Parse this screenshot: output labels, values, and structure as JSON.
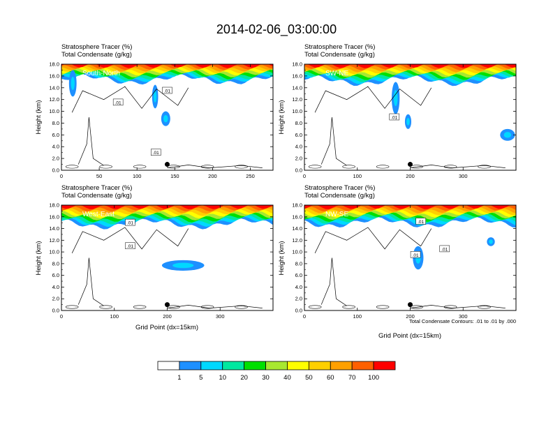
{
  "figure": {
    "title": "2014-02-06_03:00:00",
    "note": "Total Condensate Contours: .01 to .01 by .000"
  },
  "colors": {
    "levels": [
      "#ffffff",
      "#1e90ff",
      "#00d8ff",
      "#00e8a0",
      "#00e000",
      "#a8e830",
      "#ffff00",
      "#ffd000",
      "#ffa000",
      "#ff6000",
      "#ff0000"
    ],
    "stroke": "#000000"
  },
  "chart_data": [
    {
      "type": "filled-contour-cross-section",
      "id": "south-north",
      "panel_label": "South-North",
      "title_left": "Stratosphere Tracer   (%)",
      "title_left2": "Total Condensate   (g/kg)",
      "xlabel": "",
      "ylabel": "Height (km)",
      "xlim": [
        0,
        280
      ],
      "ylim": [
        0,
        18
      ],
      "x_ticks": [
        0,
        50,
        100,
        150,
        200,
        250
      ],
      "y_ticks": [
        0.0,
        2.0,
        4.0,
        6.0,
        8.0,
        10.0,
        12.0,
        14.0,
        16.0,
        18.0
      ],
      "y_tick_labels": [
        "0.0",
        "2.0",
        "4.0",
        "6.0",
        "8.0",
        "10.0",
        "12.0",
        "14.0",
        "16.0",
        "18.0"
      ],
      "marker_point": {
        "x": 140,
        "y": 1.0
      },
      "tracer_base_km": 15.4,
      "blue_patches": [
        {
          "x": 10,
          "y": 12.5,
          "w": 10,
          "h": 4.5
        },
        {
          "x": 120,
          "y": 10.5,
          "w": 8,
          "h": 4
        },
        {
          "x": 132,
          "y": 7.5,
          "w": 12,
          "h": 2.5
        }
      ],
      "contour_label": ".01",
      "contour_labels": [
        {
          "x": 75,
          "y": 11.5
        },
        {
          "x": 140,
          "y": 13.5
        },
        {
          "x": 125,
          "y": 3.0
        }
      ]
    },
    {
      "type": "filled-contour-cross-section",
      "id": "sw-ne",
      "panel_label": "SW-NE",
      "title_left": "Stratosphere Tracer   (%)",
      "title_left2": "Total Condensate   (g/kg)",
      "xlabel": "",
      "ylabel": "Height (km)",
      "xlim": [
        0,
        400
      ],
      "ylim": [
        0,
        18
      ],
      "x_ticks": [
        0,
        100,
        200,
        300
      ],
      "y_ticks": [
        0.0,
        2.0,
        4.0,
        6.0,
        8.0,
        10.0,
        12.0,
        14.0,
        16.0,
        18.0
      ],
      "y_tick_labels": [
        "0.0",
        "2.0",
        "4.0",
        "6.0",
        "8.0",
        "10.0",
        "12.0",
        "14.0",
        "16.0",
        "18.0"
      ],
      "marker_point": {
        "x": 200,
        "y": 1.0
      },
      "tracer_base_km": 15.2,
      "blue_patches": [
        {
          "x": 165,
          "y": 9.5,
          "w": 15,
          "h": 5.5
        },
        {
          "x": 190,
          "y": 7.0,
          "w": 12,
          "h": 2.5
        },
        {
          "x": 370,
          "y": 5.0,
          "w": 28,
          "h": 2.0
        }
      ],
      "contour_label": ".01",
      "contour_labels": [
        {
          "x": 170,
          "y": 9.0
        }
      ]
    },
    {
      "type": "filled-contour-cross-section",
      "id": "west-east",
      "panel_label": "West-East",
      "title_left": "Stratosphere Tracer   (%)",
      "title_left2": "Total Condensate   (g/kg)",
      "xlabel": "Grid Point (dx=15km)",
      "ylabel": "Height (km)",
      "xlim": [
        0,
        400
      ],
      "ylim": [
        0,
        18
      ],
      "x_ticks": [
        0,
        100,
        200,
        300
      ],
      "y_ticks": [
        0.0,
        2.0,
        4.0,
        6.0,
        8.0,
        10.0,
        12.0,
        14.0,
        16.0,
        18.0
      ],
      "y_tick_labels": [
        "0.0",
        "2.0",
        "4.0",
        "6.0",
        "8.0",
        "10.0",
        "12.0",
        "14.0",
        "16.0",
        "18.0"
      ],
      "marker_point": {
        "x": 200,
        "y": 1.0
      },
      "tracer_base_km": 14.8,
      "blue_patches": [
        {
          "x": 190,
          "y": 6.8,
          "w": 80,
          "h": 1.8
        },
        {
          "x": 130,
          "y": 14.5,
          "w": 10,
          "h": 1.2
        }
      ],
      "contour_label": ".01",
      "contour_labels": [
        {
          "x": 130,
          "y": 15.0
        },
        {
          "x": 130,
          "y": 11.0
        }
      ]
    },
    {
      "type": "filled-contour-cross-section",
      "id": "nw-se",
      "panel_label": "NW-SE",
      "title_left": "Stratosphere Tracer   (%)",
      "title_left2": "Total Condensate   (g/kg)",
      "xlabel": "Grid Point (dx=15km)",
      "ylabel": "Height (km)",
      "xlim": [
        0,
        400
      ],
      "ylim": [
        0,
        18
      ],
      "x_ticks": [
        0,
        100,
        200,
        300
      ],
      "y_ticks": [
        0.0,
        2.0,
        4.0,
        6.0,
        8.0,
        10.0,
        12.0,
        14.0,
        16.0,
        18.0
      ],
      "y_tick_labels": [
        "0.0",
        "2.0",
        "4.0",
        "6.0",
        "8.0",
        "10.0",
        "12.0",
        "14.0",
        "16.0",
        "18.0"
      ],
      "marker_point": {
        "x": 200,
        "y": 1.0
      },
      "tracer_base_km": 15.0,
      "blue_patches": [
        {
          "x": 205,
          "y": 7.0,
          "w": 20,
          "h": 4.0
        },
        {
          "x": 345,
          "y": 11.0,
          "w": 15,
          "h": 1.5
        }
      ],
      "contour_label": ".01",
      "contour_labels": [
        {
          "x": 220,
          "y": 15.2
        },
        {
          "x": 210,
          "y": 9.5
        },
        {
          "x": 265,
          "y": 10.5
        }
      ]
    }
  ],
  "colorbar": {
    "levels": [
      "1",
      "5",
      "10",
      "20",
      "30",
      "40",
      "50",
      "60",
      "70",
      "100"
    ],
    "boxes": [
      "#ffffff",
      "#1e90ff",
      "#00d8ff",
      "#00e8a0",
      "#00e000",
      "#a8e830",
      "#ffff00",
      "#ffd000",
      "#ffa000",
      "#ff6000",
      "#ff0000"
    ]
  }
}
